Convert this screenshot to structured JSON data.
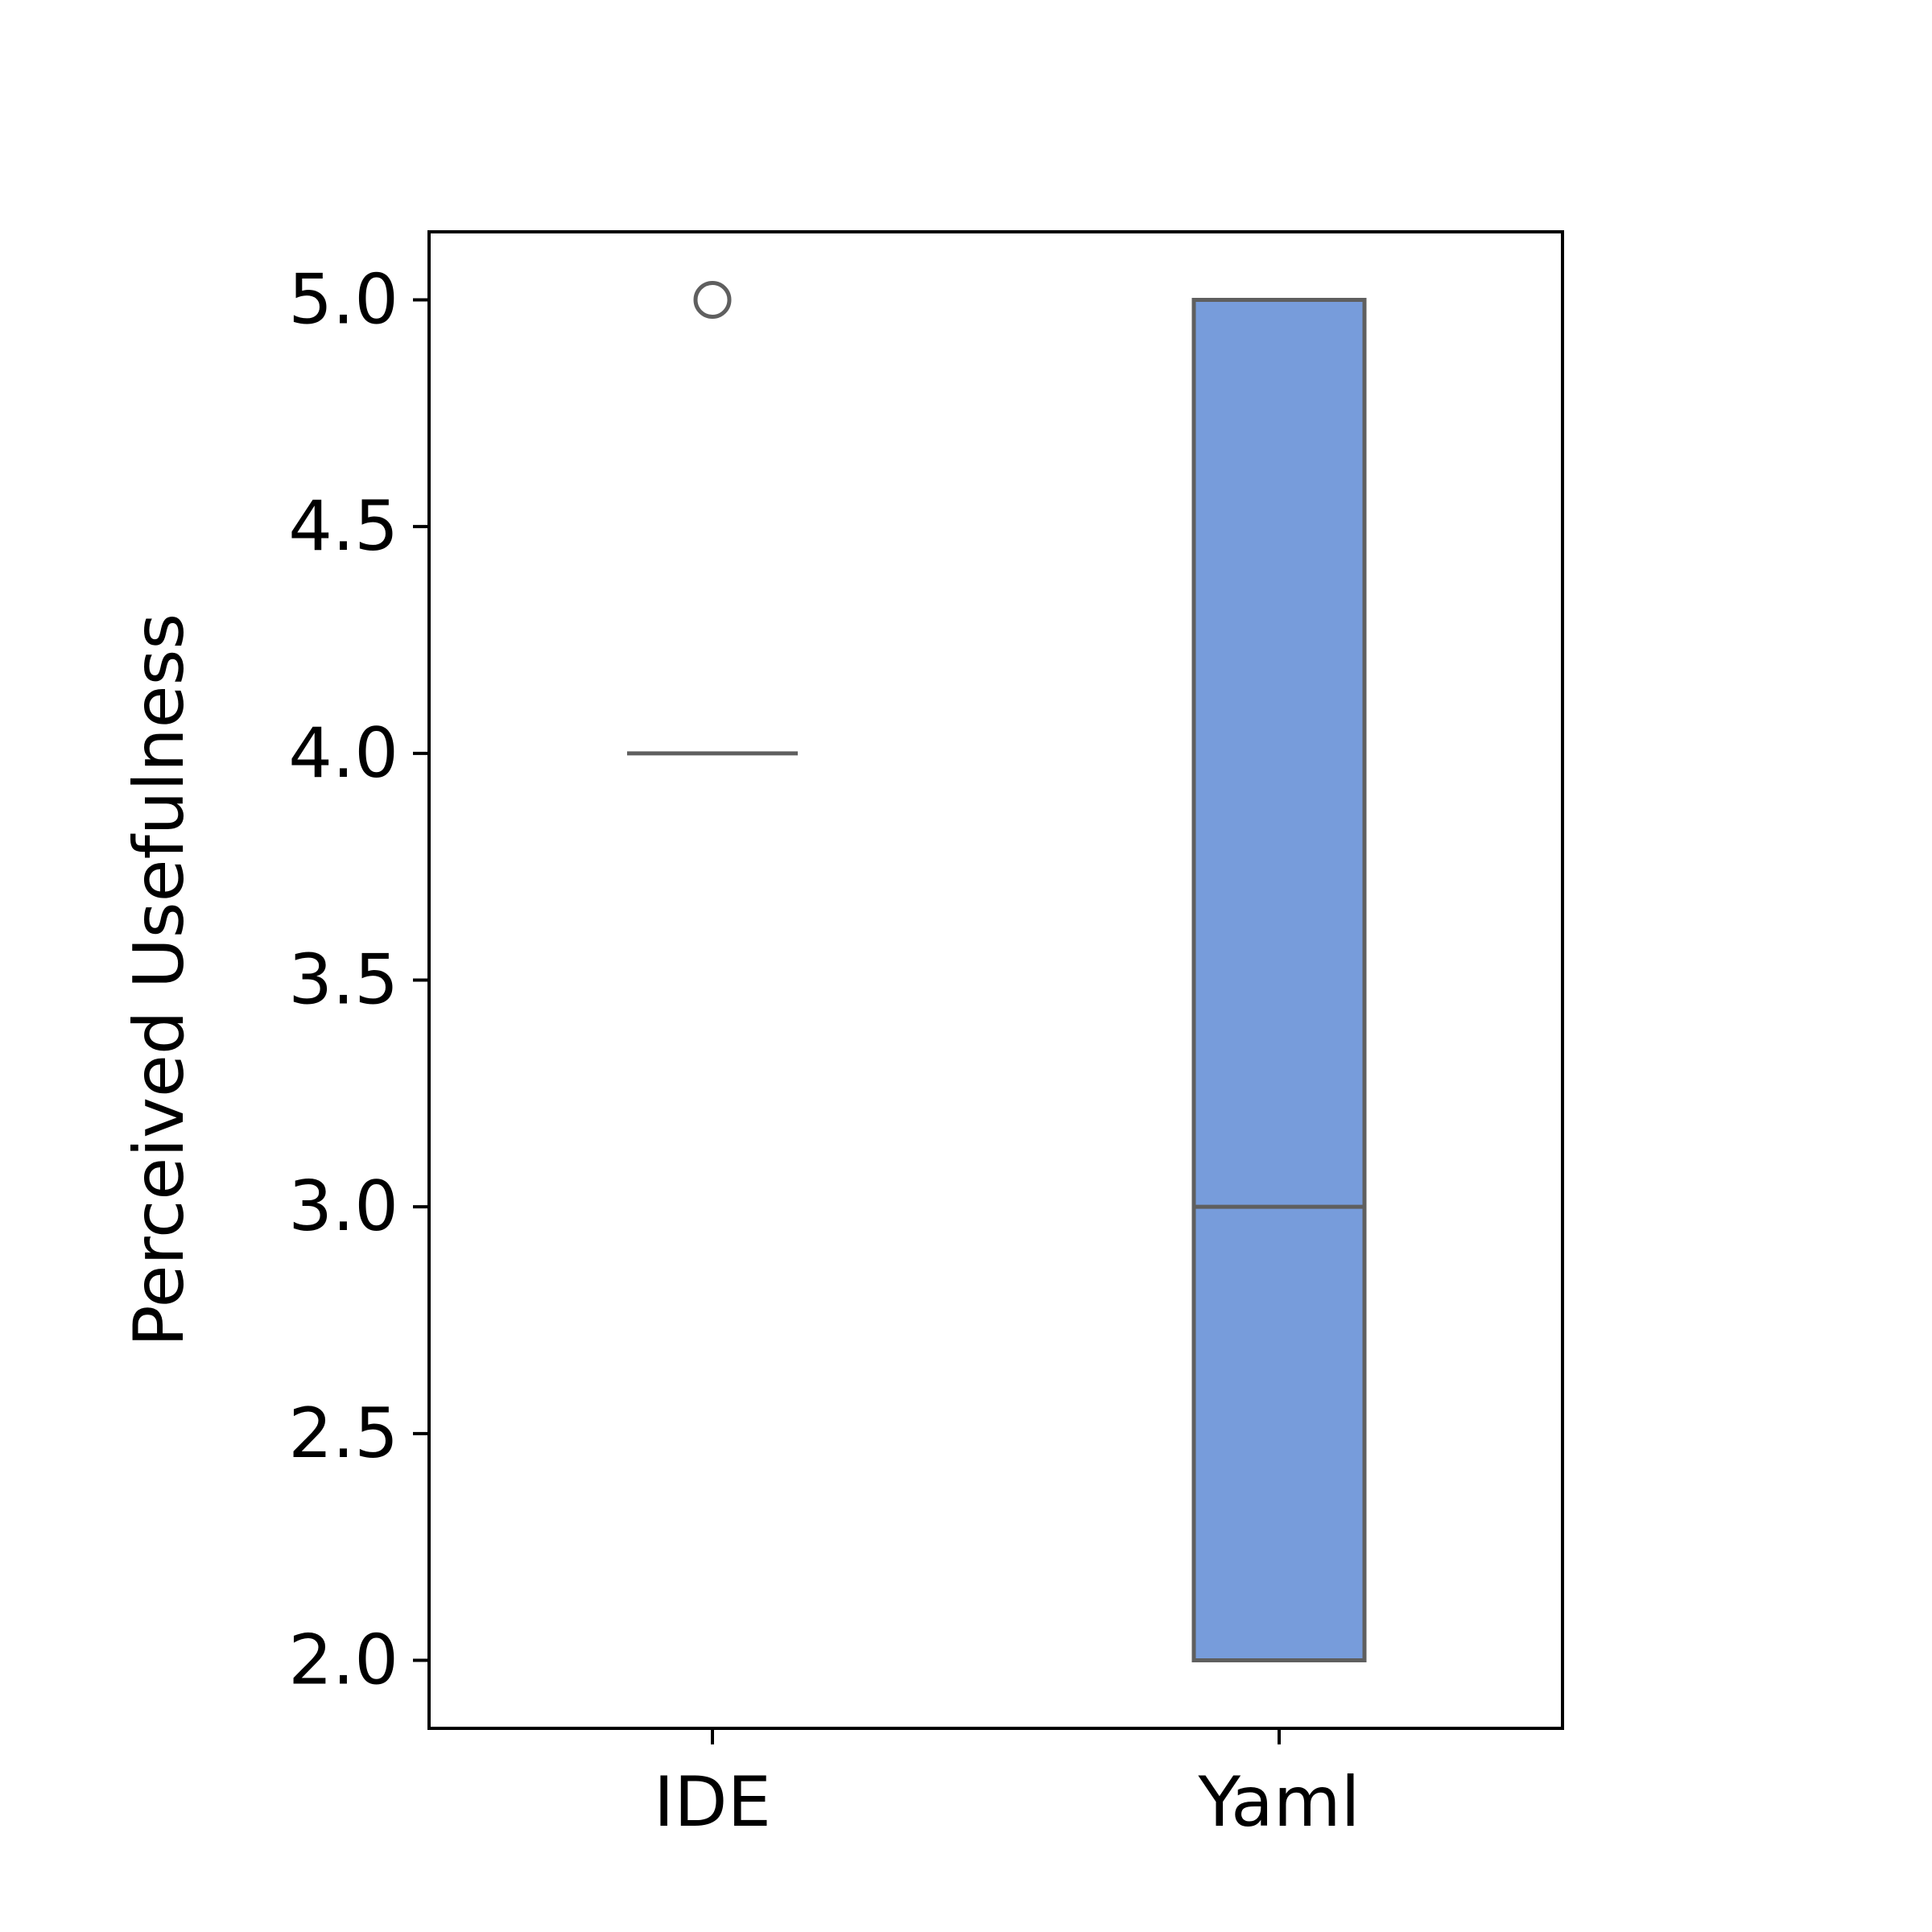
{
  "chart_data": {
    "type": "box",
    "title": "",
    "xlabel": "",
    "ylabel": "Perceived Usefulness",
    "categories": [
      "IDE",
      "Yaml"
    ],
    "ylim": [
      1.85,
      5.15
    ],
    "yticks": [
      2.0,
      2.5,
      3.0,
      3.5,
      4.0,
      4.5,
      5.0
    ],
    "ytick_labels": [
      "2.0",
      "2.5",
      "3.0",
      "3.5",
      "4.0",
      "4.5",
      "5.0"
    ],
    "grid": false,
    "boxes": [
      {
        "category": "IDE",
        "whisker_low": 4.0,
        "q1": 4.0,
        "median": 4.0,
        "q3": 4.0,
        "whisker_high": 4.0,
        "outliers": [
          5.0
        ],
        "fill": "#ffffff"
      },
      {
        "category": "Yaml",
        "whisker_low": 2.0,
        "q1": 2.0,
        "median": 3.0,
        "q3": 5.0,
        "whisker_high": 5.0,
        "outliers": [],
        "fill": "#779cdb"
      }
    ],
    "colors": {
      "box_edge": "#5f5f5f",
      "axes": "#000000"
    }
  }
}
